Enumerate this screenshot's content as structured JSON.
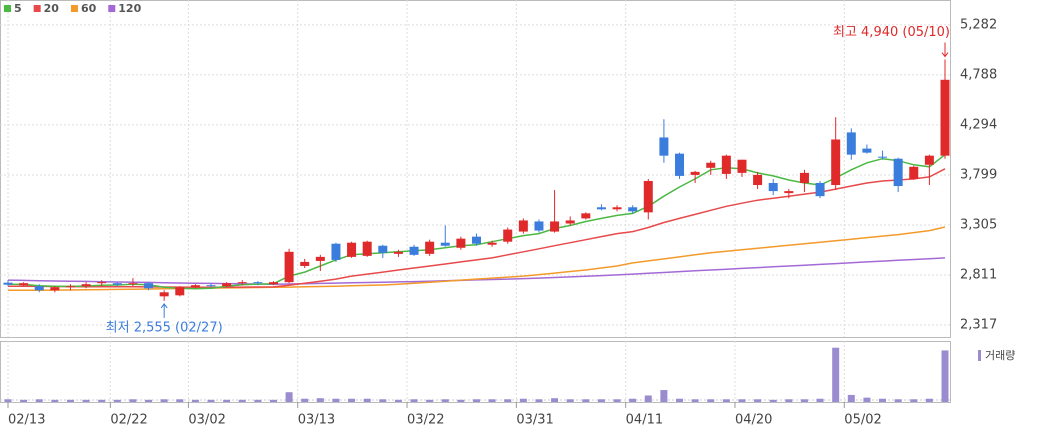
{
  "chart_data": {
    "type": "candlestick",
    "categories": [
      "02/13",
      null,
      null,
      null,
      null,
      null,
      null,
      "02/22",
      null,
      null,
      null,
      null,
      "03/02",
      null,
      null,
      null,
      null,
      null,
      null,
      "03/13",
      null,
      null,
      null,
      null,
      null,
      null,
      "03/22",
      null,
      null,
      null,
      null,
      null,
      null,
      "03/31",
      null,
      null,
      null,
      null,
      null,
      null,
      "04/11",
      null,
      null,
      null,
      null,
      null,
      null,
      "04/20",
      null,
      null,
      null,
      null,
      null,
      null,
      "05/02",
      null,
      null,
      null,
      null,
      null,
      null
    ],
    "open": [
      2735,
      2710,
      2700,
      2660,
      2690,
      2700,
      2730,
      2730,
      2720,
      2730,
      2600,
      2610,
      2690,
      2710,
      2700,
      2730,
      2740,
      2720,
      2740,
      2900,
      2950,
      3120,
      2990,
      3000,
      3100,
      3020,
      3090,
      3020,
      3130,
      3080,
      3190,
      3110,
      3140,
      3240,
      3340,
      3240,
      3320,
      3370,
      3480,
      3460,
      3480,
      3430,
      4170,
      4010,
      3800,
      3870,
      3810,
      3820,
      3700,
      3720,
      3620,
      3720,
      3720,
      3700,
      4220,
      4060,
      3980,
      3960,
      3760,
      3900,
      3990
    ],
    "high": [
      2760,
      2740,
      2720,
      2700,
      2720,
      2740,
      2760,
      2740,
      2780,
      2740,
      2660,
      2700,
      2720,
      2730,
      2740,
      2760,
      2750,
      2750,
      3070,
      2970,
      3010,
      3130,
      3140,
      3150,
      3110,
      3060,
      3110,
      3160,
      3300,
      3190,
      3220,
      3150,
      3280,
      3370,
      3360,
      3650,
      3390,
      3430,
      3510,
      3500,
      3500,
      3760,
      4350,
      4020,
      3840,
      3940,
      4000,
      3950,
      3830,
      3760,
      3660,
      3850,
      3740,
      4370,
      4260,
      4100,
      4040,
      3970,
      3890,
      4000,
      4940
    ],
    "low": [
      2700,
      2700,
      2640,
      2640,
      2660,
      2680,
      2700,
      2700,
      2700,
      2660,
      2555,
      2600,
      2680,
      2690,
      2690,
      2710,
      2710,
      2710,
      2730,
      2880,
      2850,
      2940,
      2980,
      2990,
      2980,
      2990,
      3000,
      3000,
      3090,
      3060,
      3100,
      3090,
      3120,
      3220,
      3230,
      3230,
      3300,
      3360,
      3450,
      3440,
      3420,
      3360,
      3920,
      3760,
      3720,
      3800,
      3760,
      3780,
      3660,
      3600,
      3570,
      3630,
      3570,
      3650,
      3950,
      4010,
      3950,
      3630,
      3750,
      3700,
      3960
    ],
    "close": [
      2715,
      2730,
      2660,
      2690,
      2700,
      2720,
      2740,
      2715,
      2730,
      2680,
      2640,
      2690,
      2710,
      2700,
      2730,
      2740,
      2730,
      2740,
      3040,
      2940,
      2990,
      2960,
      3130,
      3140,
      3030,
      3040,
      3010,
      3140,
      3100,
      3170,
      3120,
      3130,
      3260,
      3350,
      3250,
      3340,
      3350,
      3420,
      3460,
      3480,
      3440,
      3740,
      3990,
      3790,
      3830,
      3920,
      3990,
      3950,
      3800,
      3640,
      3640,
      3820,
      3590,
      4150,
      4000,
      4020,
      3970,
      3690,
      3880,
      3990,
      4740
    ],
    "volume": [
      5,
      4,
      5,
      4,
      4,
      4,
      4,
      4,
      5,
      4,
      5,
      5,
      4,
      4,
      4,
      4,
      4,
      4,
      18,
      6,
      7,
      6,
      6,
      6,
      5,
      4,
      5,
      4,
      5,
      4,
      5,
      5,
      5,
      6,
      5,
      7,
      5,
      5,
      5,
      5,
      6,
      12,
      22,
      6,
      5,
      5,
      5,
      5,
      5,
      4,
      5,
      5,
      6,
      100,
      13,
      8,
      6,
      5,
      5,
      6,
      95
    ],
    "volume_ylim": [
      0,
      105
    ],
    "volume_label": "거래량",
    "volume_color": "#9a8ccf",
    "up_color": "#e0292a",
    "down_color": "#3b7ddd",
    "series": [
      {
        "name": "5",
        "color": "#4cb944",
        "values": [
          2720,
          2718,
          2705,
          2700,
          2698,
          2702,
          2710,
          2712,
          2720,
          2715,
          2690,
          2680,
          2675,
          2680,
          2700,
          2715,
          2720,
          2725,
          2800,
          2840,
          2900,
          2960,
          3010,
          3020,
          3030,
          3040,
          3050,
          3060,
          3080,
          3100,
          3110,
          3140,
          3170,
          3200,
          3220,
          3270,
          3300,
          3340,
          3370,
          3400,
          3420,
          3490,
          3590,
          3680,
          3760,
          3850,
          3870,
          3860,
          3820,
          3790,
          3750,
          3720,
          3700,
          3770,
          3850,
          3920,
          3960,
          3940,
          3900,
          3880,
          4000
        ]
      },
      {
        "name": "20",
        "color": "#e8494a",
        "values": [
          2700,
          2700,
          2698,
          2697,
          2696,
          2695,
          2695,
          2694,
          2694,
          2693,
          2692,
          2691,
          2690,
          2690,
          2690,
          2691,
          2692,
          2693,
          2710,
          2730,
          2750,
          2770,
          2800,
          2820,
          2840,
          2860,
          2880,
          2900,
          2920,
          2940,
          2960,
          2980,
          3010,
          3040,
          3070,
          3100,
          3130,
          3160,
          3190,
          3220,
          3240,
          3280,
          3330,
          3370,
          3410,
          3450,
          3490,
          3520,
          3550,
          3570,
          3590,
          3610,
          3630,
          3660,
          3690,
          3720,
          3740,
          3750,
          3760,
          3780,
          3860
        ]
      },
      {
        "name": "60",
        "color": "#f39a2b",
        "values": [
          2660,
          2660,
          2661,
          2662,
          2663,
          2665,
          2667,
          2669,
          2671,
          2673,
          2675,
          2677,
          2679,
          2681,
          2683,
          2685,
          2687,
          2689,
          2691,
          2694,
          2697,
          2700,
          2704,
          2708,
          2712,
          2720,
          2730,
          2740,
          2750,
          2760,
          2770,
          2780,
          2790,
          2800,
          2815,
          2830,
          2845,
          2860,
          2880,
          2900,
          2930,
          2950,
          2970,
          2990,
          3010,
          3030,
          3045,
          3060,
          3075,
          3090,
          3105,
          3120,
          3135,
          3150,
          3165,
          3180,
          3195,
          3210,
          3230,
          3250,
          3285
        ]
      },
      {
        "name": "120",
        "color": "#a36ad6",
        "values": [
          2760,
          2758,
          2755,
          2752,
          2750,
          2748,
          2745,
          2742,
          2740,
          2738,
          2735,
          2732,
          2730,
          2728,
          2726,
          2724,
          2722,
          2720,
          2722,
          2725,
          2728,
          2731,
          2734,
          2737,
          2740,
          2743,
          2746,
          2750,
          2754,
          2758,
          2762,
          2766,
          2770,
          2775,
          2780,
          2786,
          2792,
          2798,
          2805,
          2812,
          2820,
          2828,
          2836,
          2844,
          2852,
          2860,
          2868,
          2876,
          2884,
          2892,
          2900,
          2908,
          2916,
          2924,
          2932,
          2940,
          2948,
          2956,
          2964,
          2972,
          2980
        ]
      }
    ],
    "ylim": [
      2218,
      5380
    ],
    "yticks": [
      {
        "value": 2317,
        "label": "2,317"
      },
      {
        "value": 2811,
        "label": "2,811"
      },
      {
        "value": 3305,
        "label": "3,305"
      },
      {
        "value": 3799,
        "label": "3,799"
      },
      {
        "value": 4294,
        "label": "4,294"
      },
      {
        "value": 4788,
        "label": "4,788"
      },
      {
        "value": 5282,
        "label": "5,282"
      }
    ],
    "grid": true,
    "annotations": {
      "high": "최고 4,940 (05/10)",
      "low": "최저 2,555 (02/27)"
    }
  }
}
